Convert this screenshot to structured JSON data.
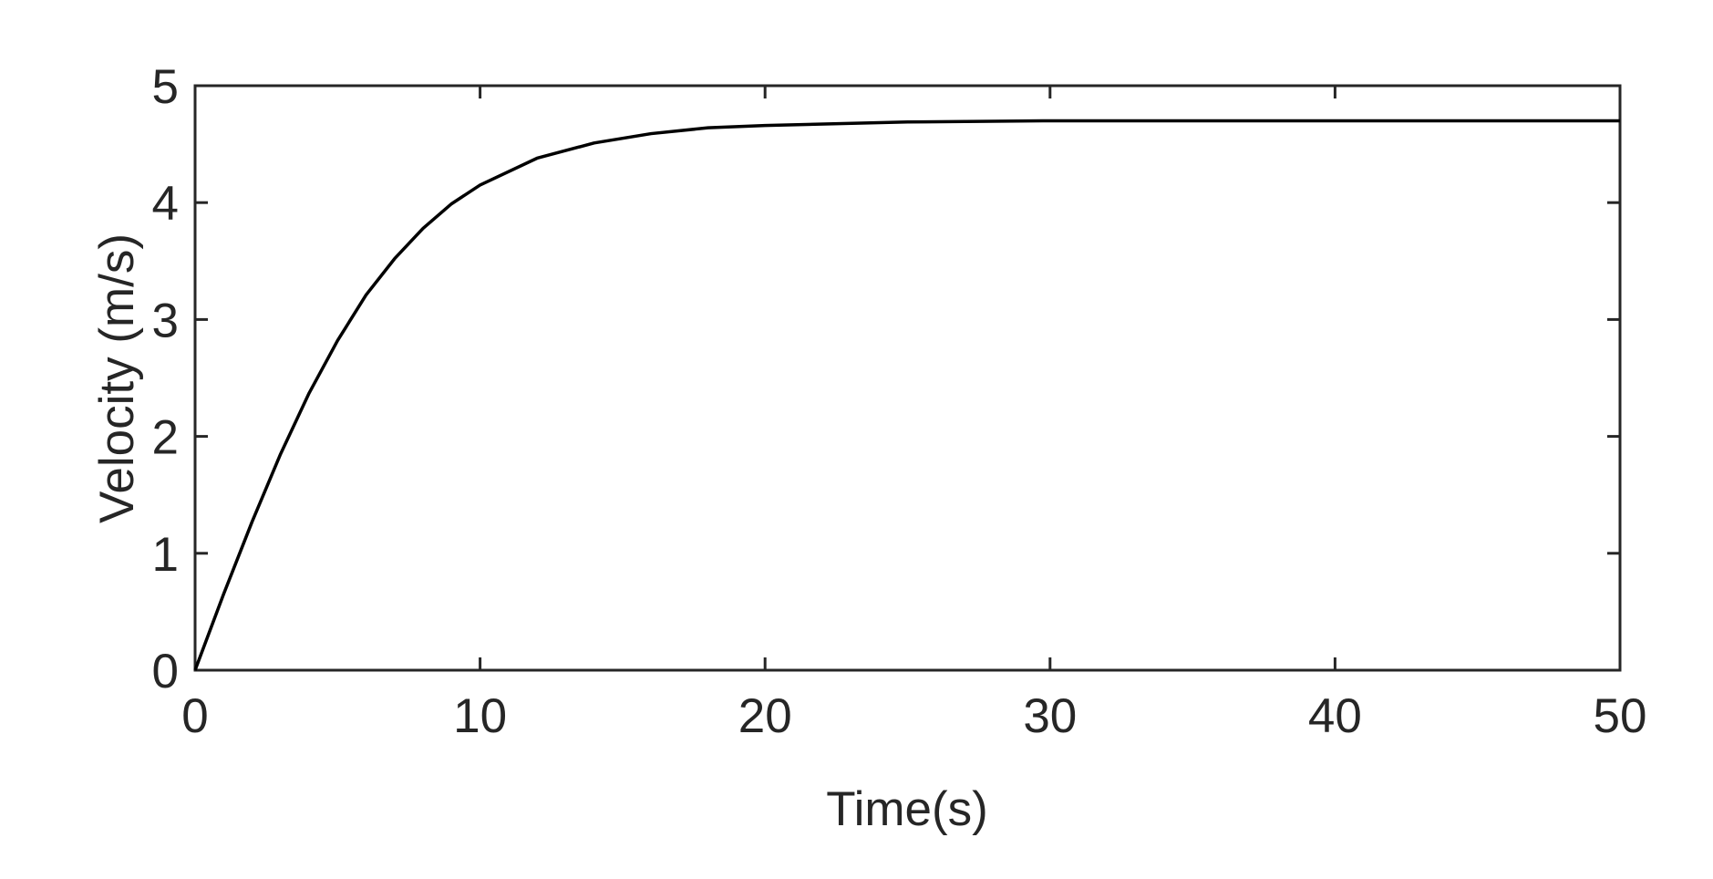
{
  "chart_data": {
    "type": "line",
    "xlabel": "Time(s)",
    "ylabel": "Velocity (m/s)",
    "x": [
      0,
      1,
      2,
      3,
      4,
      5,
      6,
      7,
      8,
      9,
      10,
      12,
      14,
      16,
      18,
      20,
      25,
      30,
      40,
      50
    ],
    "series": [
      {
        "color": "#000000",
        "values": [
          0,
          0.65,
          1.27,
          1.85,
          2.37,
          2.82,
          3.21,
          3.52,
          3.78,
          3.99,
          4.15,
          4.38,
          4.51,
          4.59,
          4.64,
          4.66,
          4.69,
          4.7,
          4.7,
          4.7
        ]
      }
    ],
    "xlim": [
      0,
      50
    ],
    "xticks": [
      0,
      10,
      20,
      30,
      40,
      50
    ],
    "ylim": [
      0,
      5
    ],
    "yticks": [
      0,
      1,
      2,
      3,
      4,
      5
    ],
    "grid": false
  }
}
